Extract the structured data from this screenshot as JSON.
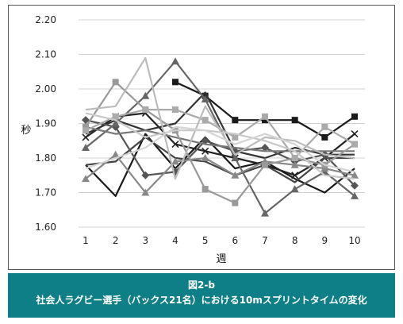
{
  "caption": {
    "label": "図2-b",
    "title": "社会人ラグビー選手（バックス21名）における10mスプリントタイムの変化"
  },
  "chart_data": {
    "type": "line",
    "xlabel": "週",
    "ylabel": "秒",
    "x": [
      1,
      2,
      3,
      4,
      5,
      6,
      7,
      8,
      9,
      10
    ],
    "ylim": [
      1.6,
      2.2
    ],
    "yticks": [
      "1.60",
      "1.70",
      "1.80",
      "1.90",
      "2.00",
      "2.10",
      "2.20"
    ],
    "xticks": [
      "1",
      "2",
      "3",
      "4",
      "5",
      "6",
      "7",
      "8",
      "9",
      "10"
    ],
    "grid": "horizontal",
    "legend": "none",
    "series": [
      {
        "color": "#1a1a1a",
        "marker": "square",
        "values": [
          null,
          null,
          null,
          2.02,
          1.98,
          1.91,
          1.91,
          1.91,
          1.86,
          1.92
        ]
      },
      {
        "color": "#1a1a1a",
        "marker": "none",
        "values": [
          1.78,
          1.69,
          1.87,
          1.77,
          1.86,
          1.77,
          1.79,
          1.74,
          1.7,
          1.77
        ]
      },
      {
        "color": "#222222",
        "marker": "x",
        "values": [
          1.86,
          1.92,
          1.93,
          1.84,
          1.82,
          1.8,
          1.78,
          1.75,
          1.8,
          1.87
        ]
      },
      {
        "color": "#333333",
        "marker": "none",
        "values": [
          1.87,
          1.91,
          1.88,
          1.9,
          1.99,
          1.82,
          1.8,
          1.83,
          1.81,
          1.81
        ]
      },
      {
        "color": "#444444",
        "marker": "none",
        "values": [
          1.78,
          1.79,
          1.86,
          1.8,
          1.79,
          1.75,
          1.78,
          1.73,
          1.8,
          1.8
        ]
      },
      {
        "color": "#555555",
        "marker": "diamond",
        "values": [
          1.91,
          1.89,
          1.75,
          1.76,
          1.85,
          1.82,
          1.83,
          1.79,
          1.81,
          1.72
        ]
      },
      {
        "color": "#666666",
        "marker": "triangle",
        "values": [
          1.83,
          1.9,
          1.98,
          2.08,
          1.97,
          1.8,
          1.64,
          1.71,
          1.76,
          1.69
        ]
      },
      {
        "color": "#777777",
        "marker": "none",
        "values": [
          1.89,
          1.87,
          1.88,
          1.86,
          1.84,
          1.83,
          1.82,
          1.82,
          1.82,
          1.82
        ]
      },
      {
        "color": "#888888",
        "marker": "triangle",
        "values": [
          1.74,
          1.81,
          1.7,
          1.79,
          1.8,
          1.75,
          1.79,
          1.78,
          1.77,
          1.75
        ]
      },
      {
        "color": "#999999",
        "marker": "square",
        "values": [
          1.89,
          2.02,
          1.94,
          1.88,
          1.71,
          1.67,
          1.78,
          1.8,
          1.78,
          1.84
        ]
      },
      {
        "color": "#aaaaaa",
        "marker": "square",
        "values": [
          1.88,
          1.92,
          1.94,
          1.94,
          1.91,
          1.86,
          1.92,
          1.8,
          1.89,
          1.84
        ]
      },
      {
        "color": "#bbbbbb",
        "marker": "none",
        "values": [
          1.94,
          1.95,
          2.09,
          1.74,
          1.95,
          1.81,
          1.86,
          1.85,
          1.81,
          1.8
        ]
      },
      {
        "color": "#c8c8c8",
        "marker": "none",
        "values": [
          1.93,
          1.91,
          1.86,
          1.88,
          1.88,
          1.87,
          1.85,
          1.82,
          1.75,
          1.74
        ]
      },
      {
        "color": "#d4d4d4",
        "marker": "none",
        "values": [
          1.77,
          1.8,
          1.83,
          1.89,
          1.88,
          1.84,
          1.87,
          1.84,
          1.78,
          1.76
        ]
      }
    ]
  }
}
